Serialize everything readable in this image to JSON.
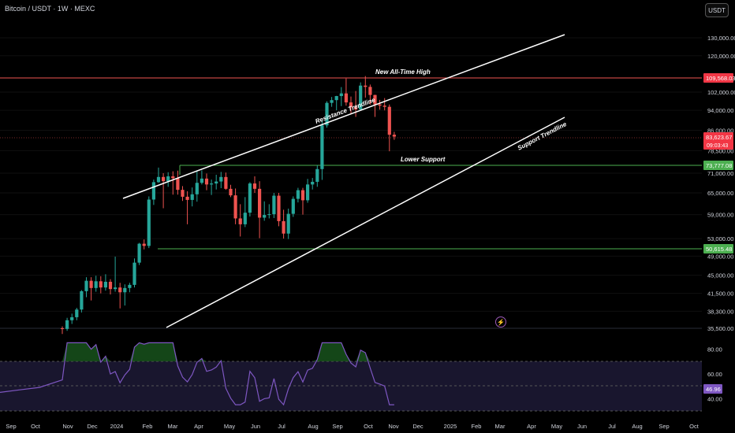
{
  "header": {
    "title": "Bitcoin / USDT · 1W · MEXC",
    "currency_button": "USDT"
  },
  "colors": {
    "bull": "#26a69a",
    "bear": "#ef5350",
    "resistance_line": "#ef5350",
    "support_line": "#4caf50",
    "trendline": "#ffffff",
    "rsi": "#7e57c2",
    "price_label_bg": "#f23645",
    "support_label_bg": "#4caf50"
  },
  "annotations": {
    "new_ath": "New All-Time High",
    "resistance": "Resistance Trendline",
    "support": "Support Trendline",
    "lower_support": "Lower Support"
  },
  "price_axis": {
    "ticks": [
      "130,000.00",
      "120,000.00",
      "102,000.00",
      "94,000.00",
      "86,000.00",
      "78,500.00",
      "71,000.00",
      "65,000.00",
      "59,000.00",
      "53,000.00",
      "49,000.00",
      "45,000.00",
      "41,500.00",
      "38,300.00",
      "35,500.00"
    ],
    "ath_label": "109,568.03",
    "current_price": "83,623.67",
    "countdown": "09:03:43",
    "level_73k": "73,777.08",
    "level_50k": "50,615.48"
  },
  "rsi_axis": {
    "ticks": [
      "80.00",
      "60.00",
      "40.00"
    ],
    "value": "46.96"
  },
  "time_axis": {
    "ticks": [
      "Sep",
      "Oct",
      "Nov",
      "Dec",
      "2024",
      "Feb",
      "Mar",
      "Apr",
      "May",
      "Jun",
      "Jul",
      "Aug",
      "Sep",
      "Oct",
      "Nov",
      "Dec",
      "2025",
      "Feb",
      "Mar",
      "Apr",
      "May",
      "Jun",
      "Jul",
      "Aug",
      "Sep",
      "Oct"
    ]
  },
  "chart_data": {
    "type": "candlestick",
    "symbol": "Bitcoin / USDT",
    "interval": "1W",
    "exchange": "MEXC",
    "horizontal_levels": [
      109568.03,
      73777.08,
      50615.48
    ],
    "candles": [
      [
        35500,
        35800,
        34600,
        35400
      ],
      [
        35400,
        37200,
        35100,
        36800
      ],
      [
        36800,
        37900,
        36200,
        37300
      ],
      [
        37300,
        38900,
        36800,
        38600
      ],
      [
        38600,
        42100,
        38100,
        41900
      ],
      [
        41900,
        44600,
        40800,
        43900
      ],
      [
        43900,
        44600,
        40200,
        42500
      ],
      [
        42500,
        44900,
        41800,
        43800
      ],
      [
        43800,
        44800,
        41500,
        42600
      ],
      [
        42600,
        45200,
        42000,
        43700
      ],
      [
        43700,
        44200,
        41300,
        42300
      ],
      [
        42300,
        48900,
        41800,
        42600
      ],
      [
        42600,
        43500,
        38800,
        41700
      ],
      [
        41700,
        43200,
        39300,
        42500
      ],
      [
        42500,
        43500,
        41700,
        43100
      ],
      [
        43100,
        48500,
        42600,
        47600
      ],
      [
        47600,
        52000,
        47100,
        51800
      ],
      [
        51800,
        52800,
        50500,
        51300
      ],
      [
        51300,
        64000,
        50800,
        63100
      ],
      [
        63100,
        69000,
        61600,
        68200
      ],
      [
        68200,
        72800,
        68000,
        69800
      ],
      [
        69800,
        71000,
        60700,
        68500
      ],
      [
        68500,
        71300,
        66800,
        70000
      ],
      [
        70000,
        71600,
        64500,
        69400
      ],
      [
        69400,
        71800,
        64500,
        65900
      ],
      [
        65900,
        67000,
        62700,
        63900
      ],
      [
        63900,
        65500,
        56500,
        63000
      ],
      [
        63000,
        66600,
        61200,
        64600
      ],
      [
        64600,
        71900,
        62500,
        68000
      ],
      [
        68000,
        71900,
        67500,
        69300
      ],
      [
        69300,
        70900,
        65800,
        67500
      ],
      [
        67500,
        69000,
        64400,
        67800
      ],
      [
        67800,
        70500,
        66000,
        68400
      ],
      [
        68400,
        71400,
        66400,
        69800
      ],
      [
        69800,
        71200,
        65900,
        66200
      ],
      [
        66200,
        67400,
        63800,
        64300
      ],
      [
        64300,
        66300,
        56500,
        58000
      ],
      [
        58000,
        61800,
        53500,
        56500
      ],
      [
        56500,
        63800,
        55800,
        59500
      ],
      [
        59500,
        68200,
        58500,
        67800
      ],
      [
        67800,
        70000,
        65000,
        66200
      ],
      [
        66200,
        68500,
        53100,
        58200
      ],
      [
        58200,
        62600,
        57400,
        58900
      ],
      [
        58900,
        61800,
        58000,
        59100
      ],
      [
        59100,
        65000,
        58100,
        64200
      ],
      [
        64200,
        65000,
        56000,
        57300
      ],
      [
        57300,
        60300,
        53000,
        54200
      ],
      [
        54200,
        60600,
        52900,
        59200
      ],
      [
        59200,
        64000,
        58400,
        63300
      ],
      [
        63300,
        66500,
        62300,
        65800
      ],
      [
        65800,
        66500,
        59000,
        62900
      ],
      [
        62900,
        69200,
        62200,
        67500
      ],
      [
        67500,
        69500,
        66000,
        68300
      ],
      [
        68300,
        73600,
        66800,
        72300
      ],
      [
        72300,
        89900,
        68900,
        87900
      ],
      [
        87900,
        97900,
        87000,
        97200
      ],
      [
        97200,
        99800,
        95500,
        98400
      ],
      [
        98400,
        100300,
        94000,
        100200
      ],
      [
        100200,
        104300,
        95800,
        101400
      ],
      [
        101400,
        108400,
        96000,
        97400
      ],
      [
        97400,
        100000,
        92300,
        95300
      ],
      [
        95300,
        102500,
        91300,
        94400
      ],
      [
        94400,
        106500,
        94000,
        105000
      ],
      [
        105000,
        109568,
        99500,
        104400
      ],
      [
        104400,
        105500,
        96500,
        100700
      ],
      [
        100700,
        100800,
        91300,
        96500
      ],
      [
        96500,
        98500,
        94300,
        96000
      ],
      [
        96000,
        99300,
        94000,
        95500
      ],
      [
        95500,
        96500,
        78300,
        84300
      ],
      [
        84300,
        85400,
        82400,
        83600
      ]
    ]
  }
}
